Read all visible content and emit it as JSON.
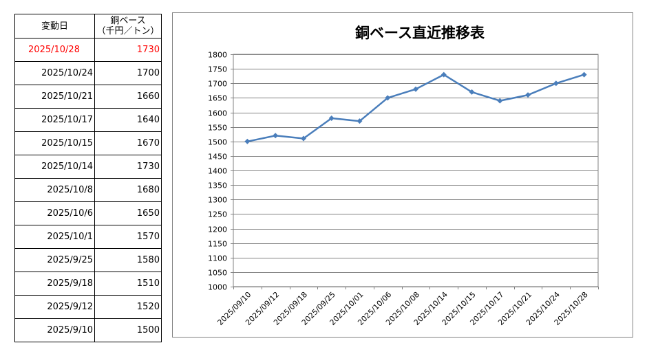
{
  "table": {
    "header_date": "変動日",
    "header_price_line1": "銅ベース",
    "header_price_line2": "（千円／トン）",
    "rows": [
      {
        "date": "2025/10/28",
        "price": "1730"
      },
      {
        "date": "2025/10/24",
        "price": "1700"
      },
      {
        "date": "2025/10/21",
        "price": "1660"
      },
      {
        "date": "2025/10/17",
        "price": "1640"
      },
      {
        "date": "2025/10/15",
        "price": "1670"
      },
      {
        "date": "2025/10/14",
        "price": "1730"
      },
      {
        "date": "2025/10/8",
        "price": "1680"
      },
      {
        "date": "2025/10/6",
        "price": "1650"
      },
      {
        "date": "2025/10/1",
        "price": "1570"
      },
      {
        "date": "2025/9/25",
        "price": "1580"
      },
      {
        "date": "2025/9/18",
        "price": "1510"
      },
      {
        "date": "2025/9/12",
        "price": "1520"
      },
      {
        "date": "2025/9/10",
        "price": "1500"
      }
    ]
  },
  "colors": {
    "latest_row": "#ff0000",
    "series_line": "#4a7ebb",
    "grid": "#808080"
  },
  "chart_data": {
    "type": "line",
    "title": "銅ベース直近推移表",
    "xlabel": "",
    "ylabel": "",
    "categories": [
      "2025/09/10",
      "2025/09/12",
      "2025/09/18",
      "2025/09/25",
      "2025/10/01",
      "2025/10/06",
      "2025/10/08",
      "2025/10/14",
      "2025/10/15",
      "2025/10/17",
      "2025/10/21",
      "2025/10/24",
      "2025/10/28"
    ],
    "series": [
      {
        "values": [
          1500,
          1520,
          1510,
          1580,
          1570,
          1650,
          1680,
          1730,
          1670,
          1640,
          1660,
          1700,
          1730
        ]
      }
    ],
    "ylim": [
      1000,
      1800
    ],
    "ytick_step": 50,
    "grid": true,
    "legend": "none",
    "marker": "diamond"
  }
}
